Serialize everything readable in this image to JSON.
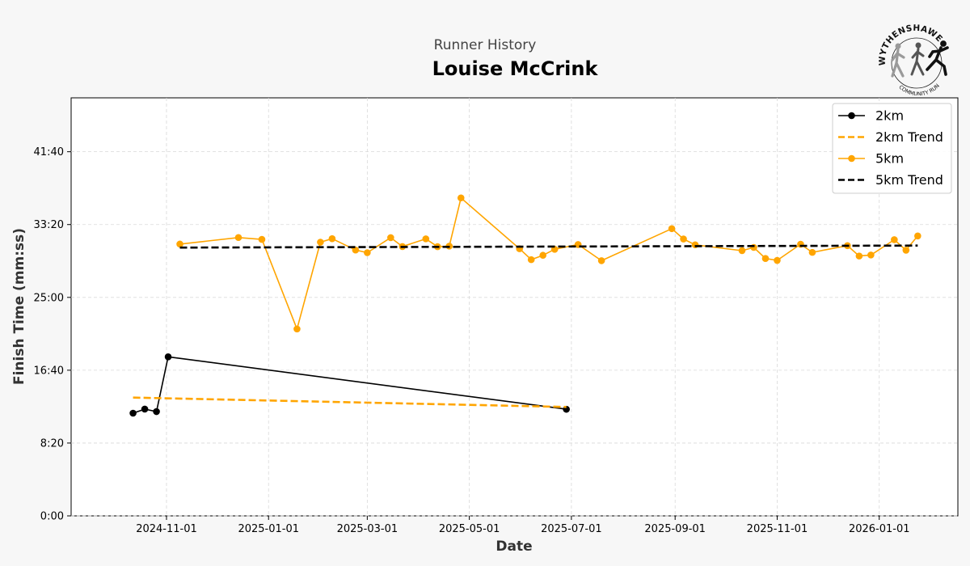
{
  "header": {
    "subtitle": "Runner History",
    "title": "Louise McCrink"
  },
  "logo": {
    "top_text": "WYTHENSHAWE",
    "bottom_text": "COMMUNITY RUN"
  },
  "chart_data": {
    "type": "line",
    "xlabel": "Date",
    "ylabel": "Finish Time (mm:ss)",
    "xlim": [
      "2024-09-05",
      "2026-02-17"
    ],
    "ylim": [
      0,
      2870
    ],
    "x_ticks": [
      "2024-11-01",
      "2025-01-01",
      "2025-03-01",
      "2025-05-01",
      "2025-07-01",
      "2025-09-01",
      "2025-11-01",
      "2026-01-01"
    ],
    "y_ticks": [
      0,
      500,
      1000,
      1500,
      2000,
      2500
    ],
    "y_tick_labels": [
      "0:00",
      "8:20",
      "16:40",
      "25:00",
      "33:20",
      "41:40"
    ],
    "grid": true,
    "legend_position": "top-right",
    "series": [
      {
        "name": "2km",
        "style": "solid",
        "marker": true,
        "color": "#000000",
        "points": [
          {
            "x": "2024-10-12",
            "y": 705
          },
          {
            "x": "2024-10-19",
            "y": 733
          },
          {
            "x": "2024-10-26",
            "y": 716
          },
          {
            "x": "2024-11-02",
            "y": 1092
          },
          {
            "x": "2025-06-28",
            "y": 732
          }
        ]
      },
      {
        "name": "2km Trend",
        "style": "dashed",
        "marker": false,
        "color": "#FFA500",
        "points": [
          {
            "x": "2024-10-12",
            "y": 812
          },
          {
            "x": "2025-06-28",
            "y": 748
          }
        ]
      },
      {
        "name": "5km",
        "style": "solid",
        "marker": true,
        "color": "#FFA500",
        "points": [
          {
            "x": "2024-11-09",
            "y": 1866
          },
          {
            "x": "2024-12-14",
            "y": 1911
          },
          {
            "x": "2024-12-28",
            "y": 1898
          },
          {
            "x": "2025-01-18",
            "y": 1283
          },
          {
            "x": "2025-02-01",
            "y": 1879
          },
          {
            "x": "2025-02-08",
            "y": 1903
          },
          {
            "x": "2025-02-22",
            "y": 1825
          },
          {
            "x": "2025-03-01",
            "y": 1807
          },
          {
            "x": "2025-03-15",
            "y": 1910
          },
          {
            "x": "2025-03-22",
            "y": 1849
          },
          {
            "x": "2025-04-05",
            "y": 1902
          },
          {
            "x": "2025-04-12",
            "y": 1848
          },
          {
            "x": "2025-04-19",
            "y": 1852
          },
          {
            "x": "2025-04-26",
            "y": 2183
          },
          {
            "x": "2025-05-31",
            "y": 1834
          },
          {
            "x": "2025-06-07",
            "y": 1759
          },
          {
            "x": "2025-06-14",
            "y": 1789
          },
          {
            "x": "2025-06-21",
            "y": 1830
          },
          {
            "x": "2025-07-05",
            "y": 1863
          },
          {
            "x": "2025-07-19",
            "y": 1752
          },
          {
            "x": "2025-08-30",
            "y": 1972
          },
          {
            "x": "2025-09-06",
            "y": 1901
          },
          {
            "x": "2025-09-13",
            "y": 1861
          },
          {
            "x": "2025-10-11",
            "y": 1821
          },
          {
            "x": "2025-10-18",
            "y": 1843
          },
          {
            "x": "2025-10-25",
            "y": 1767
          },
          {
            "x": "2025-11-01",
            "y": 1754
          },
          {
            "x": "2025-11-15",
            "y": 1865
          },
          {
            "x": "2025-11-22",
            "y": 1809
          },
          {
            "x": "2025-12-13",
            "y": 1855
          },
          {
            "x": "2025-12-20",
            "y": 1784
          },
          {
            "x": "2025-12-27",
            "y": 1791
          },
          {
            "x": "2026-01-10",
            "y": 1896
          },
          {
            "x": "2026-01-17",
            "y": 1824
          },
          {
            "x": "2026-01-24",
            "y": 1922
          }
        ]
      },
      {
        "name": "5km Trend",
        "style": "dashed",
        "marker": false,
        "color": "#000000",
        "points": [
          {
            "x": "2024-11-09",
            "y": 1842
          },
          {
            "x": "2026-01-24",
            "y": 1856
          }
        ]
      }
    ]
  }
}
